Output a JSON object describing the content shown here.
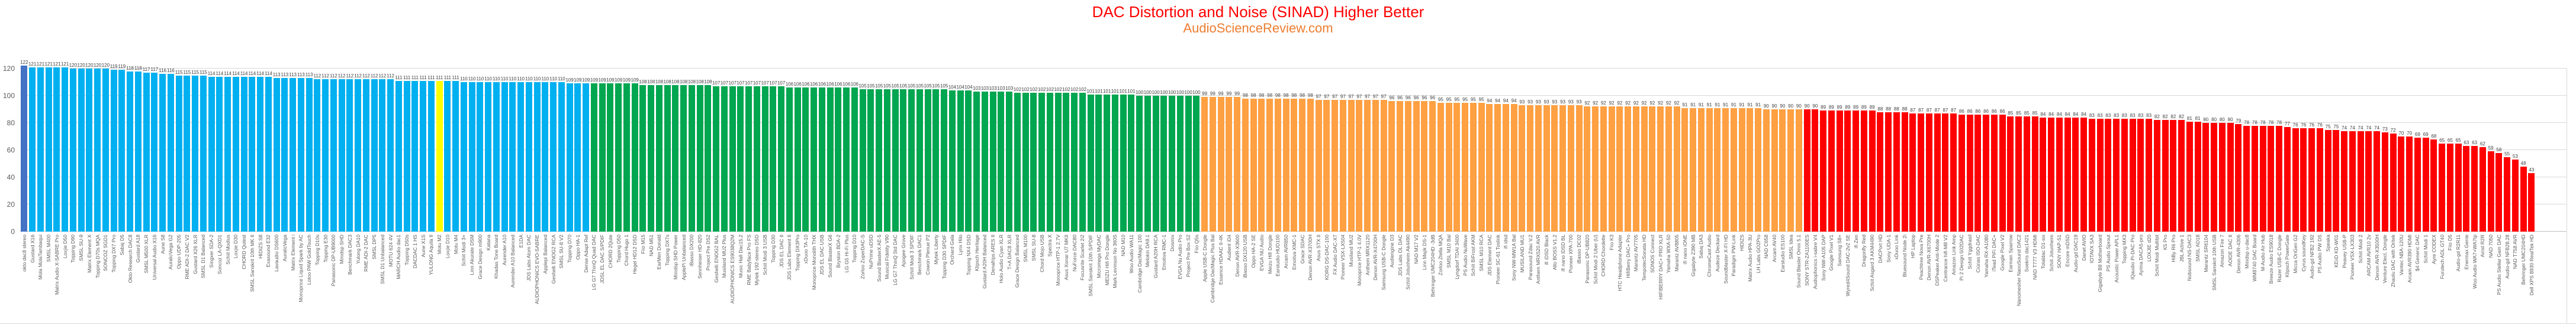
{
  "title": "DAC Distortion and Noise (SINAD) Higher Better",
  "subtitle": "AudioScienceReview.com",
  "colors": {
    "title": "#FF0000",
    "subtitle": "#ED7D31",
    "gridline": "#D9D9D9",
    "value_label": "#404040",
    "category_label": "#595959",
    "best": "#4472C4",
    "blue_tier": "#00B0F0",
    "green_tier": "#00A650",
    "orange_tier": "#FFA042",
    "red_tier": "#FF0000",
    "highlight_yellow": "#FFFF00"
  },
  "chart_data": {
    "type": "bar",
    "title": "DAC Distortion and Noise (SINAD) Higher Better",
    "subtitle": "AudioScienceReview.com",
    "xlabel": "",
    "ylabel": "",
    "ylim": [
      0,
      120
    ],
    "yticks": [
      0,
      20,
      40,
      60,
      80,
      100,
      120
    ],
    "grid": true,
    "value_labels": true,
    "tiers": [
      {
        "name": "best-dark-blue",
        "color": "#4472C4",
        "from": 0,
        "to": 0
      },
      {
        "name": "blue",
        "color": "#00B0F0",
        "from": 1,
        "to": 69
      },
      {
        "name": "green",
        "color": "#00A650",
        "from": 70,
        "to": 144
      },
      {
        "name": "orange",
        "color": "#FFA042",
        "from": 145,
        "to": 218
      },
      {
        "name": "red",
        "color": "#FF0000",
        "from": 219,
        "to": 308
      }
    ],
    "highlight": {
      "index": 51,
      "color": "#FFFF00",
      "label": "Motu M2"
    },
    "categories": [
      "okto dac8 stereo",
      "Gustard X16",
      "Mola MolaTambaqui",
      "SMSL M400",
      "Matrix Audio X-SABRE Pro",
      "Loxjie D50",
      "Topping D90",
      "SMSL SU-9",
      "Matrix Element X",
      "Topping D70s MQA",
      "SONCOZ SGD1",
      "Topping DX7 Pro",
      "Sabaj D5",
      "Okto Research DAC8",
      "Gustard A18",
      "SMSL M500 XLR",
      "Universal Audio X16",
      "Aune S8",
      "AuralicVega G2",
      "Oppo UDP-205",
      "RME ADI-2 DAC V2",
      "Gustard X26 XLR",
      "SMSL D1 Balanced",
      "Singxer SDA-2",
      "Soncoz LA-QXD1",
      "Schiit Modius",
      "Loxjie D30",
      "CHORD Qutest",
      "SMSL Sanskrit 10th MK II",
      "HIDIZS S8",
      "Exasound E32",
      "Lavaudio DS600",
      "AuralicVega",
      "Matrix Element i",
      "Monoprice Liquid Spark by AC",
      "Lotoo PAW GoldTouch",
      "Topping D10s",
      "Topping E30",
      "Panasonic DP-UB9000",
      "Minidsp SHD",
      "Benchmark DAC3",
      "Yulong DA10",
      "RME ADI-2 DAC",
      "SMSL DP5",
      "SMSL D1 Unbalanced",
      "MOTU 624 4V",
      "MARCH Audio dac1",
      "Topping D50s",
      "DACDAC 1 HS",
      "Aune X1S",
      "YULONG Aquila II",
      "Motu M2",
      "Loxjie D10",
      "Motu M4",
      "Schiit Modi 3+",
      "Linn Akurate DSM",
      "Grace Design m900",
      "Katana",
      "Khadas Tone Board",
      "Aurender A10",
      "Aurender A10 Balanced",
      "E1DA",
      "JDS Labs Atom DAC",
      "AUDIOPHONICS EVO-SABRE",
      "Applepi Balanced",
      "Geshelli ENOG2 RCA",
      "SMSL SU-8 V2",
      "Topping D70",
      "Oppo HA-1",
      "Dense Adapt Ref",
      "LG G7 ThinQ Quad DAC",
      "JDSL EL DAC S/PDIF",
      "CHORD 2Qute",
      "Topping D50",
      "Chord Hugo 1",
      "Hegel HD12 DSD",
      "Fiio M15",
      "NAD M51",
      "EarMen Donald",
      "Topping DX7s",
      "Minidsp SHD Power",
      "ApplePi Unbalanced",
      "iBasso DX200",
      "Sennheiser HD-820",
      "Project Pre DS2",
      "Geshelli ENOG2 BAL",
      "Musiland MU2 Plus",
      "AUDIOPHONICS ES9038Q2M",
      "Music Hall Dac15.2",
      "RME Babyface Pro FS",
      "Mytek 192-stereo DSD",
      "Schiit Modi 3 USB",
      "Topping D30",
      "JDS EL DAC II",
      "JDS Labs Element II",
      "Topping DX3Pro",
      "xDuoo TA-10",
      "Monoprice Monolith THX",
      "JDS EL DAC USB",
      "Sound BlasterX G6",
      "Bryston BDA-2",
      "LG G5 Hi-Fi Plus",
      "Topping D10",
      "Zorloo ZuperDAC-S",
      "NuPrime uDSD",
      "Sound BlasterX AE-5",
      "Musical Fidelity V90",
      "LG G7 ThinQ Std DAC",
      "Apogee Grove",
      "Schiit Modi 3 SPDIF",
      "Benchmark DAC1",
      "Cowon Plenue P2",
      "Mytek Liberty",
      "Topping D30 SPDIF",
      "Orchard Gala",
      "Lynx Hilo",
      "Topping NX4 DSD",
      "Klipsch Heritage",
      "Gustard A20H Balanced",
      "Denafrips ARES II",
      "Holo Audio Cyan XLR",
      "T+A DAC8 XLR",
      "Grace Design Balanced",
      "SMSL M100",
      "SMSL SU-8",
      "Chord Mojo USB",
      "Spectra X",
      "Monoprice HTP-1 2.7V",
      "Asus Xonar U7 MKII",
      "NuForce DAC80",
      "Focusrite Scarlet 2i2",
      "SMSL Sanskrit 10th S/PDIF",
      "Micromega MyDAC",
      "MEIZU Hifi Pro Dongle",
      "Mark Levinson No 360S",
      "NAD M10",
      "Woo Audio WA11",
      "Cambridge DacMagic 100",
      "Melokin DA9.1",
      "Gustard A20H RCA",
      "Emotiva RMC-1",
      "Dosmix",
      "EVGA Nu Audio Pro",
      "Project Pre Box S2",
      "Fiio Q5s",
      "Apple USB-C Dongle",
      "Cambridge DacMagic Plus Bal",
      "Essence HDAAC II-4K",
      "Audient iD4",
      "Denon AVR-X3600",
      "iBasso DX120 USB",
      "Oppo HA-2 SE",
      "EVGA NU Audio",
      "Meizu Hifi Dongle",
      "Earstudio HUD100",
      "Arcam AVR850",
      "Emotiva XMC-1",
      "Grace SDAC",
      "Denon AVR-X3700H",
      "Asus STX II",
      "KORG DS-DAC-100",
      "FX Audio DAC-X7",
      "Pioneer VSX-LX504",
      "Musiland MU2",
      "Monoprice HTP-1 4.0V",
      "Anthem MRX1120",
      "Denon AVR-X4700H",
      "Samsung USB-C Dongle",
      "Audiengine D3",
      "JDS Labs OL DAC",
      "Schiit Jotunheim Ak4490",
      "NAD M17 V2",
      "Linn Majik DS-1",
      "Behringer UMC204HD -3dB",
      "Zorloo Ztella MQA",
      "SMSL M10 Bal",
      "Lyngdorf TDAI 3400",
      "PS Audio NuWave",
      "Schiit BiFrost AKM",
      "SMSL M10 RCA",
      "JDS Element DAC",
      "Pioneer SC-61 Toslink",
      "ifi idsd",
      "Sony NW-MW1A Bal",
      "MUSILAND MU1",
      "Parasound Zdac V.2",
      "Anthem MRX520 AVR",
      "ifi iDSD Black",
      "Allo BOSS V1.2",
      "ifi nano iDSD BL",
      "Pioneer XPA-700",
      "iBasso DC02",
      "Panasonic DP-UB820",
      "Schiit Modi 2 Uber (U)",
      "CHORD Chordette",
      "Fiio K3",
      "HTC Headphone Adapter",
      "HifiBerry DAC+ Pro",
      "Marantz AV7705",
      "TempotecSonata HD",
      "SONOS Connect",
      "HIFIBERRY DAC+ PRO XLR",
      "Yamaha WXA-50",
      "Marantz AV8805",
      "ifi nano iONE",
      "Gigabyte Z390 MB",
      "Sabaj DA3",
      "ChromeCast Audio",
      "Audeze Deckard",
      "Soundblaster X-FI HD",
      "Paradigm PW-Link",
      "HIDIZS",
      "Matrix Audio HPA-3U",
      "LH Labs GO2Pro",
      "NAD C658",
      "Arcam AV40",
      "Earstudio ES100",
      "SMSL Idea",
      "Sound Blaster Omni 5.1",
      "SONY STR-ZA1100ES",
      "Audiophonics i-sabre V4",
      "Sony NW-A105 DAP",
      "Google Pixel V1",
      "Samsung S8+",
      "Wyred4Sound DAC-2v2 SE",
      "ifi Zen",
      "Dragonfly Red",
      "Schiit Asgard 3 AKM4490",
      "DACPort HD",
      "Sony UDA-1",
      "xDuoo Link",
      "Bluesound Node 2i",
      "HP Laptop",
      "Peachtree Nova Pre",
      "Denon AVR-X6700H",
      "DSPeaker Anti-Mode 2",
      "Centrance hifi-M8 V2",
      "Amazon Link Amp",
      "Pi 2 Design 502DAC",
      "Schiit Yggdrasil",
      "Ciúnas ISO-DAC",
      "Yamaha RX-A1080",
      "iTead PiFi DAC+",
      "Google Pixel V2",
      "Earman Sparrow",
      "Nanomesher NanoSound DAC2",
      "Soekris dac1421",
      "NAD T777 V3 HDMI",
      "Totaldac D1-six",
      "Schiit Jotunheim",
      "SONY HAP-S1",
      "Encore mDSD",
      "Audio-gd DAC19",
      "Danet AVIO",
      "IOTAVX SA3",
      "Gigabyte B8 Motherboard",
      "PS Audio Sprout",
      "Acoustic Power APL1",
      "Topping MX3",
      "IQaudio Pi-DAC Pro",
      "Ayima DACA5-pro",
      "LOXJIE d20",
      "Schiit Modi Multibit",
      "K5 Pro",
      "HiBy R6 Pro",
      "JBL Active 1",
      "Nobsound NS-DAC3",
      "SMSL AD18",
      "Marantz SR6104",
      "SMSL Sanskrit 10th USB",
      "Amazon Fire 7",
      "AOIDE DAC II",
      "Denon AVR-4306",
      "Minidsp u-dac8",
      "WM8740 DAC Board",
      "M-Audio Air Hub",
      "Breeze Audio ES9018",
      "Razer USB-C Dongle",
      "Klipsch PowerGate",
      "Micca OriGen G2",
      "Cyrus soundKey",
      "Audio-gd NFB2 192",
      "PS Audio PW DS",
      "Speaka",
      "KEiiD KD-W01",
      "Peavey USB-P",
      "Pioneer VSX-LX303",
      "Schiit Modi 2",
      "ARCAM AVR10 2v",
      "Denon AVR-X3500H",
      "Venture Elect. Dongle",
      "Zhaolu DAC with Oritek",
      "Vantec NBA-120U",
      "Arcam AVR390 HDMI",
      "$4 Generic DAC",
      "Schiit Modi 1",
      "Ayre CODEX",
      "Furutech ADL GT40",
      "Fiio D5",
      "Audio-gd R2R11",
      "Enermax Genie",
      "Woo Audio WA7+WA7tp",
      "Airist R2R",
      "NAD 7050",
      "PS Audio Stellar Gain DAC",
      "Audio-gd NFB28.28",
      "NAD T758 AVR",
      "Behringer UMC204HD",
      "Dell XPS 8930 RealTek HD"
    ],
    "values": [
      122,
      121,
      121,
      121,
      121,
      121,
      120,
      120,
      120,
      120,
      120,
      119,
      119,
      118,
      118,
      117,
      117,
      116,
      116,
      115,
      115,
      115,
      115,
      114,
      114,
      114,
      114,
      114,
      114,
      114,
      114,
      113,
      113,
      113,
      113,
      113,
      112,
      112,
      112,
      112,
      112,
      112,
      112,
      112,
      112,
      112,
      111,
      111,
      111,
      111,
      111,
      111,
      111,
      111,
      110,
      110,
      110,
      110,
      110,
      110,
      110,
      110,
      110,
      110,
      110,
      110,
      110,
      109,
      109,
      109,
      109,
      109,
      109,
      109,
      109,
      109,
      108,
      108,
      108,
      108,
      108,
      108,
      108,
      108,
      108,
      107,
      107,
      107,
      107,
      107,
      107,
      107,
      107,
      107,
      106,
      106,
      106,
      106,
      106,
      106,
      106,
      106,
      106,
      105,
      105,
      105,
      105,
      105,
      105,
      105,
      105,
      105,
      105,
      105,
      104,
      104,
      104,
      103,
      103,
      103,
      103,
      103,
      102,
      102,
      102,
      102,
      102,
      102,
      102,
      102,
      102,
      101,
      101,
      101,
      101,
      101,
      101,
      100,
      100,
      100,
      100,
      100,
      100,
      100,
      100,
      99,
      99,
      99,
      99,
      99,
      98,
      98,
      98,
      98,
      98,
      98,
      98,
      98,
      98,
      97,
      97,
      97,
      97,
      97,
      97,
      97,
      97,
      97,
      96,
      96,
      96,
      96,
      96,
      96,
      95,
      95,
      95,
      95,
      95,
      95,
      94,
      94,
      94,
      94,
      93,
      93,
      93,
      93,
      93,
      93,
      93,
      93,
      92,
      92,
      92,
      92,
      92,
      92,
      92,
      92,
      92,
      92,
      92,
      92,
      91,
      91,
      91,
      91,
      91,
      91,
      91,
      91,
      91,
      91,
      90,
      90,
      90,
      90,
      90,
      90,
      90,
      89,
      89,
      89,
      89,
      89,
      89,
      89,
      88,
      88,
      88,
      88,
      87,
      87,
      87,
      87,
      87,
      87,
      86,
      86,
      86,
      86,
      86,
      86,
      85,
      85,
      85,
      85,
      84,
      84,
      84,
      84,
      84,
      84,
      83,
      83,
      83,
      83,
      83,
      83,
      83,
      83,
      82,
      82,
      82,
      82,
      81,
      81,
      80,
      80,
      80,
      80,
      79,
      78,
      78,
      78,
      78,
      78,
      77,
      76,
      76,
      76,
      76,
      75,
      75,
      74,
      74,
      74,
      74,
      74,
      73,
      72,
      70,
      70,
      69,
      69,
      68,
      65,
      65,
      65,
      63,
      63,
      62,
      59,
      58,
      55,
      53,
      48,
      43
    ],
    "legend": [],
    "legend_position": "none"
  }
}
